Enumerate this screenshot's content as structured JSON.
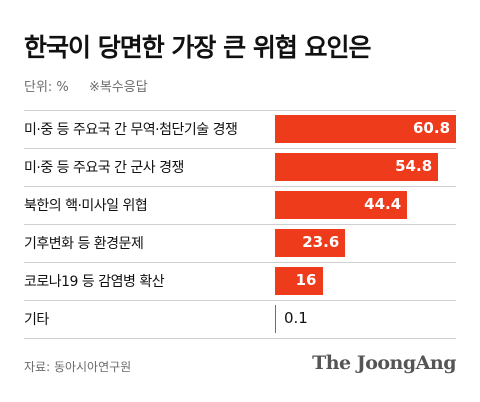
{
  "header": {
    "title": "한국이 당면한 가장 큰 위협 요인은",
    "unit": "단위: %",
    "note": "※복수응답"
  },
  "footer": {
    "source": "자료: 동아시아연구원",
    "brand": "The JoongAng"
  },
  "colors": {
    "bar": "#ee3b1c"
  },
  "chart_data": {
    "type": "bar",
    "orientation": "horizontal",
    "title": "한국이 당면한 가장 큰 위협 요인은",
    "unit": "%",
    "categories": [
      "미·중 등 주요국 간 무역·첨단기술 경쟁",
      "미·중 등 주요국 간 군사 경쟁",
      "북한의 핵·미사일 위협",
      "기후변화 등 환경문제",
      "코로나19 등 감염병 확산",
      "기타"
    ],
    "values": [
      60.8,
      54.8,
      44.4,
      23.6,
      16,
      0.1
    ],
    "value_labels": [
      "60.8",
      "54.8",
      "44.4",
      "23.6",
      "16",
      "0.1"
    ],
    "xlim": [
      0,
      60.8
    ]
  }
}
